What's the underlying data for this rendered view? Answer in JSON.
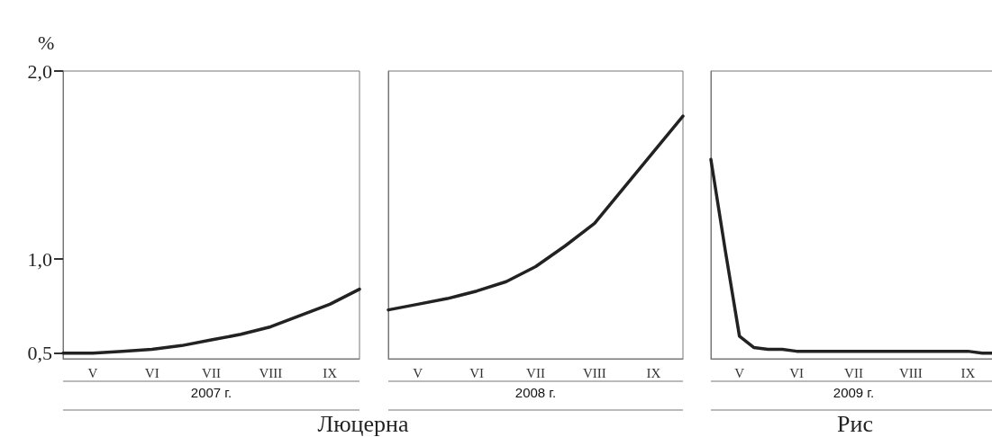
{
  "chart_data": [
    {
      "type": "line",
      "ylabel": "%",
      "xlabel": "2007 г.",
      "annotations": [
        "Люцерна"
      ],
      "categories": [
        null,
        "V",
        null,
        "VI",
        null,
        "VII",
        null,
        "VIII",
        null,
        "IX",
        null
      ],
      "ylim": [
        0.47,
        2.0
      ],
      "yticks": [
        {
          "value": 0.5,
          "label": "0,5"
        },
        {
          "value": 1.0,
          "label": "1,0"
        },
        {
          "value": 2.0,
          "label": "2,0"
        }
      ],
      "grid": false,
      "marker": "none",
      "line_style": "solid",
      "series": [
        {
          "color": "#222222",
          "values": [
            0.5,
            0.5,
            0.51,
            0.52,
            0.54,
            0.57,
            0.6,
            0.64,
            0.7,
            0.76,
            0.84
          ]
        }
      ]
    },
    {
      "type": "line",
      "xlabel": "2008 г.",
      "categories": [
        null,
        "V",
        null,
        "VI",
        null,
        "VII",
        null,
        "VIII",
        null,
        "IX",
        null
      ],
      "ylim": [
        0.47,
        2.0
      ],
      "tick_labels": "x",
      "grid": false,
      "marker": "none",
      "line_style": "solid",
      "series": [
        {
          "color": "#222222",
          "values": [
            0.73,
            0.76,
            0.79,
            0.83,
            0.88,
            0.96,
            1.07,
            1.19,
            1.38,
            1.57,
            1.76
          ]
        }
      ]
    },
    {
      "type": "line",
      "xlabel": "2009 г.",
      "annotations": [
        "Рис"
      ],
      "categories": [
        null,
        null,
        "V",
        null,
        null,
        null,
        "VI",
        null,
        null,
        null,
        "VII",
        null,
        null,
        null,
        "VIII",
        null,
        null,
        null,
        "IX",
        null,
        null
      ],
      "ylim": [
        0.47,
        2.0
      ],
      "tick_labels": "x",
      "grid": false,
      "marker": "none",
      "line_style": "solid",
      "series": [
        {
          "color": "#222222",
          "values": [
            1.53,
            1.05,
            0.59,
            0.53,
            0.52,
            0.52,
            0.51,
            0.51,
            0.51,
            0.51,
            0.51,
            0.51,
            0.51,
            0.51,
            0.51,
            0.51,
            0.51,
            0.51,
            0.51,
            0.5,
            0.5
          ]
        }
      ]
    }
  ]
}
